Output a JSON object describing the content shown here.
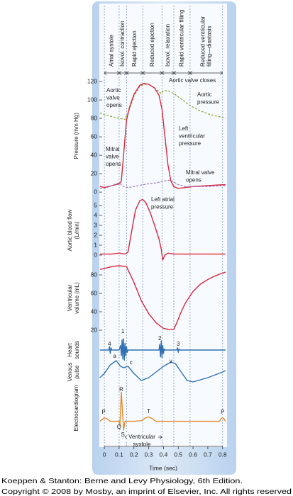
{
  "chart_data": {
    "type": "line",
    "x_label": "Time (sec)",
    "xlim": [
      -0.034,
      0.83
    ],
    "xticks": [
      0,
      0.1,
      0.2,
      0.3,
      0.4,
      0.5,
      0.6,
      0.7,
      0.8
    ],
    "phase_boundaries": [
      0,
      0.1,
      0.15,
      0.26,
      0.39,
      0.47,
      0.58,
      0.8
    ],
    "phases": [
      [
        "Atrial systole"
      ],
      [
        "Isovol. contraction"
      ],
      [
        "Rapid ejection"
      ],
      [
        "Reduced ejection"
      ],
      [
        "Isovol. relaxation"
      ],
      [
        "Rapid ventricular filling"
      ],
      [
        "Reduced ventricular",
        "filling—diastasis"
      ]
    ],
    "panels": [
      {
        "y_label": [
          "Pressure (mm Hg)"
        ],
        "ylim": [
          -3,
          125
        ],
        "yticks": [
          0,
          20,
          40,
          60,
          80,
          100,
          120
        ],
        "series": [
          {
            "color": "#8aa52a",
            "dash": true,
            "x": [
              -0.03,
              0,
              0.05,
              0.1,
              0.14,
              0.17,
              0.2,
              0.24,
              0.27,
              0.3,
              0.34,
              0.37,
              0.385,
              0.4,
              0.43,
              0.47,
              0.52,
              0.58,
              0.65,
              0.72,
              0.8,
              0.82
            ],
            "values": [
              86,
              84,
              82,
              80,
              79,
              90,
              104,
              115,
              117,
              117,
              113,
              109,
              107,
              110,
              110,
              107,
              101,
              94,
              88,
              84,
              81,
              80
            ]
          },
          {
            "color": "#d9283a",
            "dash": false,
            "x": [
              -0.03,
              0,
              0.05,
              0.1,
              0.115,
              0.13,
              0.15,
              0.17,
              0.2,
              0.24,
              0.27,
              0.3,
              0.34,
              0.37,
              0.39,
              0.41,
              0.43,
              0.45,
              0.47,
              0.5,
              0.55,
              0.6,
              0.7,
              0.8,
              0.82
            ],
            "values": [
              6,
              5,
              7,
              9,
              12,
              40,
              78,
              92,
              106,
              116,
              118,
              117,
              113,
              105,
              90,
              60,
              30,
              12,
              6,
              4,
              5,
              6,
              7,
              8,
              8
            ]
          },
          {
            "color": "#9b72c4",
            "dash": true,
            "x": [
              -0.03,
              0,
              0.05,
              0.08,
              0.1,
              0.13,
              0.16,
              0.2,
              0.26,
              0.3,
              0.35,
              0.4,
              0.44,
              0.47,
              0.5,
              0.55,
              0.6,
              0.7,
              0.8,
              0.82
            ],
            "values": [
              4,
              4,
              7,
              9,
              10,
              6,
              5,
              6,
              8,
              9,
              10,
              12,
              13,
              11,
              8,
              6,
              6,
              6,
              7,
              7
            ]
          }
        ],
        "annotations": [
          {
            "lines": [
              "Aortic valve closes"
            ]
          },
          {
            "lines": [
              "Aortic",
              "valve",
              "opens"
            ]
          },
          {
            "lines": [
              "Aortic",
              "pressure"
            ]
          },
          {
            "lines": [
              "Left",
              "ventricular",
              "pressure"
            ]
          },
          {
            "lines": [
              "Mitral",
              "valve",
              "opens"
            ]
          },
          {
            "lines": [
              "Mitral valve",
              "opens"
            ]
          },
          {
            "lines": [
              "Left atrial",
              "pressure"
            ]
          }
        ]
      },
      {
        "y_label": [
          "Aortic blood flow",
          "(L/min)"
        ],
        "ylim": [
          -1,
          6
        ],
        "yticks": [
          0,
          1,
          2,
          3,
          4,
          5
        ],
        "series": [
          {
            "color": "#d9283a",
            "dash": false,
            "x": [
              -0.03,
              0,
              0.05,
              0.1,
              0.14,
              0.16,
              0.18,
              0.21,
              0.24,
              0.26,
              0.28,
              0.31,
              0.34,
              0.37,
              0.385,
              0.395,
              0.41,
              0.43,
              0.47,
              0.55,
              0.65,
              0.8,
              0.82
            ],
            "values": [
              0.1,
              0.1,
              0.1,
              0.2,
              0.1,
              0.3,
              2.0,
              4.5,
              5.5,
              5.6,
              5.3,
              4.3,
              3.0,
              1.6,
              0.6,
              -0.5,
              0,
              0.2,
              0.1,
              0.1,
              0.1,
              0.1,
              0.1
            ]
          }
        ]
      },
      {
        "y_label": [
          "Ventricular",
          "volume (mL)"
        ],
        "ylim": [
          15,
          95
        ],
        "yticks": [
          20,
          40,
          60,
          80
        ],
        "series": [
          {
            "color": "#d9283a",
            "dash": false,
            "x": [
              -0.03,
              0,
              0.05,
              0.1,
              0.15,
              0.2,
              0.25,
              0.3,
              0.35,
              0.4,
              0.43,
              0.47,
              0.49,
              0.52,
              0.55,
              0.6,
              0.65,
              0.7,
              0.75,
              0.8,
              0.82
            ],
            "values": [
              86,
              87,
              89,
              90,
              89,
              72,
              52,
              38,
              28,
              22,
              21,
              21,
              28,
              40,
              50,
              62,
              70,
              75,
              79,
              82,
              83
            ]
          }
        ]
      },
      {
        "y_label": [
          "Heart",
          "sounds"
        ],
        "ylim": [
          -1,
          1
        ],
        "series": [
          {
            "color": "#2f6fb3",
            "dash": false,
            "x": [
              -0.03,
              0.03,
              0.035,
              0.04,
              0.045,
              0.05,
              0.06,
              0.1,
              0.11,
              0.115,
              0.12,
              0.125,
              0.13,
              0.135,
              0.14,
              0.145,
              0.15,
              0.155,
              0.16,
              0.17,
              0.37,
              0.375,
              0.38,
              0.385,
              0.39,
              0.395,
              0.4,
              0.405,
              0.41,
              0.49,
              0.495,
              0.5,
              0.505,
              0.51,
              0.82
            ],
            "values": [
              0,
              0,
              0.3,
              -0.3,
              0.2,
              0,
              0,
              0,
              0.4,
              -0.5,
              0.9,
              -0.8,
              1.0,
              -0.9,
              0.6,
              -0.5,
              0.3,
              -0.2,
              0,
              0,
              0,
              0.5,
              -0.6,
              0.8,
              -0.7,
              0.4,
              -0.3,
              0.1,
              0,
              0,
              0.2,
              -0.2,
              0.1,
              0,
              0
            ]
          }
        ],
        "point_labels": [
          "4",
          "1",
          "2",
          "3"
        ]
      },
      {
        "y_label": [
          "Venous",
          "pulse"
        ],
        "ylim": [
          0,
          1
        ],
        "series": [
          {
            "color": "#2f6fb3",
            "dash": false,
            "x": [
              -0.03,
              0,
              0.04,
              0.08,
              0.11,
              0.13,
              0.16,
              0.2,
              0.25,
              0.3,
              0.35,
              0.4,
              0.45,
              0.48,
              0.52,
              0.56,
              0.6,
              0.7,
              0.8,
              0.82
            ],
            "values": [
              0.3,
              0.45,
              0.75,
              0.9,
              0.7,
              0.65,
              0.7,
              0.45,
              0.2,
              0.3,
              0.5,
              0.7,
              0.85,
              0.8,
              0.5,
              0.2,
              0.15,
              0.3,
              0.5,
              0.55
            ]
          }
        ],
        "point_labels": [
          "a",
          "c",
          "v"
        ]
      },
      {
        "y_label": [
          "Electrocardiogram"
        ],
        "ylim": [
          -0.3,
          1.2
        ],
        "series": [
          {
            "color": "#e5892c",
            "dash": false,
            "x": [
              -0.03,
              -0.01,
              0,
              0.02,
              0.04,
              0.1,
              0.105,
              0.115,
              0.13,
              0.14,
              0.2,
              0.25,
              0.28,
              0.3,
              0.32,
              0.35,
              0.78,
              0.79,
              0.8,
              0.81,
              0.82
            ],
            "values": [
              0,
              0.08,
              0.12,
              0.08,
              0,
              0,
              -0.15,
              1.0,
              -0.3,
              0,
              0,
              0.02,
              0.12,
              0.15,
              0.1,
              0,
              0,
              0.1,
              0.12,
              0.08,
              0
            ]
          }
        ],
        "point_labels": [
          "P",
          "Q",
          "R",
          "S",
          "T",
          "P"
        ],
        "annotations": [
          {
            "lines": [
              "Ventricular",
              "systole"
            ]
          }
        ]
      }
    ]
  },
  "footer": [
    "Koeppen & Stanton: Berne and Levy Physiology, 6th Edition.",
    "Copyright © 2008 by Mosby, an imprint of Elsevier, Inc. All rights reserved"
  ]
}
